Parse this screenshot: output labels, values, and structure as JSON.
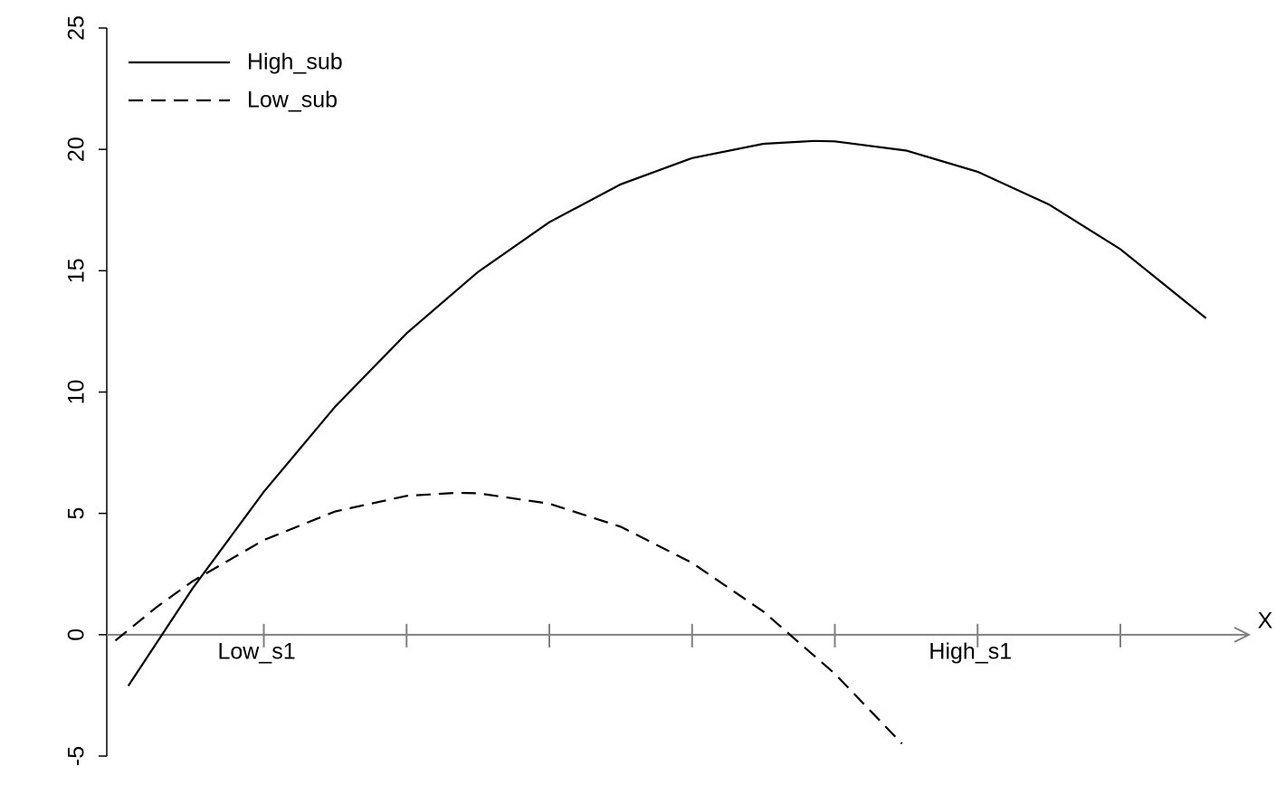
{
  "chart_data": {
    "type": "line",
    "xlabel": "X",
    "xlim": [
      -0.1,
      7.9
    ],
    "ylim": [
      -5,
      25
    ],
    "yticks": [
      -5,
      0,
      5,
      10,
      15,
      20,
      25
    ],
    "xticks": [
      {
        "value": 1,
        "label": "Low_s1"
      },
      {
        "value": 2,
        "label": null
      },
      {
        "value": 3,
        "label": null
      },
      {
        "value": 4,
        "label": null
      },
      {
        "value": 5,
        "label": null
      },
      {
        "value": 6,
        "label": "High_s1"
      },
      {
        "value": 7,
        "label": null
      }
    ],
    "legend": "upper left",
    "series": [
      {
        "name": "High_sub",
        "color": "#000000",
        "linestyle": "solid",
        "x": [
          0.05,
          0.5,
          1.0,
          1.5,
          2.0,
          2.5,
          3.0,
          3.5,
          4.0,
          4.5,
          4.857,
          5.0,
          5.5,
          6.0,
          6.5,
          7.0,
          7.6
        ],
        "values": [
          -2.11,
          1.9,
          5.89,
          9.4,
          12.42,
          14.95,
          17.0,
          18.56,
          19.64,
          20.23,
          20.35,
          20.33,
          19.95,
          19.08,
          17.73,
          15.89,
          13.04
        ]
      },
      {
        "name": "Low_sub",
        "color": "#000000",
        "linestyle": "dashed",
        "x": [
          -0.04,
          0.25,
          0.5,
          1.0,
          1.5,
          2.0,
          2.35,
          2.5,
          3.0,
          3.5,
          4.0,
          4.5,
          5.0,
          5.47
        ],
        "values": [
          -0.24,
          1.14,
          2.2,
          3.9,
          5.08,
          5.72,
          5.85,
          5.83,
          5.4,
          4.45,
          2.96,
          0.95,
          -1.61,
          -4.49
        ]
      }
    ]
  }
}
